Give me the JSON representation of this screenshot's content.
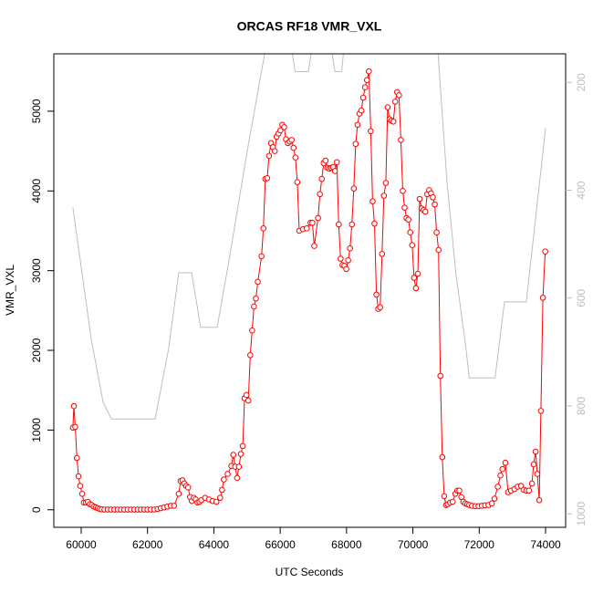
{
  "chart_data": {
    "type": "line",
    "title": "ORCAS RF18 VMR_VXL",
    "x_label": "UTC Seconds",
    "y_label": "VMR_VXL",
    "xlim": [
      59175,
      74605
    ],
    "xticks": [
      60000,
      62000,
      64000,
      66000,
      68000,
      70000,
      72000,
      74000
    ],
    "ylim": [
      -220,
      5720
    ],
    "yticks": [
      0,
      1000,
      2000,
      3000,
      4000,
      5000
    ],
    "y2lim": [
      1025,
      147
    ],
    "y2ticks": [
      200,
      400,
      600,
      800,
      1000
    ],
    "series": [
      {
        "color": "#ff0000",
        "markers": true,
        "x": [
          59750,
          59780,
          59820,
          59870,
          59920,
          59970,
          60030,
          60080,
          60140,
          60200,
          60260,
          60320,
          60380,
          60440,
          60500,
          60560,
          60620,
          60700,
          60800,
          60900,
          61000,
          61100,
          61200,
          61300,
          61400,
          61500,
          61600,
          61700,
          61800,
          61900,
          62000,
          62100,
          62200,
          62300,
          62400,
          62500,
          62600,
          62700,
          62800,
          62940,
          62997,
          63054,
          63110,
          63167,
          63224,
          63281,
          63337,
          63394,
          63451,
          63508,
          63565,
          63621,
          63735,
          63848,
          63962,
          64075,
          64189,
          64246,
          64302,
          64416,
          64529,
          64586,
          64643,
          64700,
          64756,
          64813,
          64870,
          64927,
          64983,
          65040,
          65097,
          65154,
          65210,
          65267,
          65324,
          65437,
          65494,
          65551,
          65608,
          65664,
          65721,
          65778,
          65835,
          65891,
          65948,
          66005,
          66062,
          66118,
          66175,
          66232,
          66289,
          66345,
          66402,
          66459,
          66516,
          66573,
          66686,
          66800,
          66913,
          66970,
          67027,
          67140,
          67197,
          67254,
          67311,
          67367,
          67424,
          67481,
          67538,
          67594,
          67651,
          67708,
          67765,
          67821,
          67878,
          67935,
          67992,
          68048,
          68105,
          68162,
          68219,
          68275,
          68332,
          68389,
          68446,
          68502,
          68559,
          68616,
          68673,
          68729,
          68786,
          68843,
          68900,
          68957,
          69013,
          69070,
          69127,
          69184,
          69240,
          69297,
          69354,
          69411,
          69467,
          69524,
          69581,
          69638,
          69695,
          69751,
          69808,
          69865,
          69921,
          69978,
          70035,
          70092,
          70148,
          70205,
          70262,
          70319,
          70375,
          70432,
          70489,
          70546,
          70602,
          70659,
          70716,
          70773,
          70829,
          70886,
          70943,
          71000,
          71050,
          71120,
          71200,
          71280,
          71340,
          71400,
          71460,
          71520,
          71580,
          71640,
          71700,
          71780,
          71880,
          71980,
          72080,
          72180,
          72280,
          72380,
          72460,
          72560,
          72640,
          72700,
          72790,
          72870,
          72960,
          73060,
          73160,
          73260,
          73340,
          73420,
          73500,
          73590,
          73640,
          73700,
          73750,
          73810,
          73860,
          73920,
          73990
        ],
        "values": [
          1030,
          1300,
          1040,
          650,
          420,
          300,
          200,
          90,
          90,
          100,
          70,
          60,
          40,
          30,
          20,
          10,
          5,
          3,
          3,
          3,
          3,
          3,
          3,
          3,
          3,
          3,
          3,
          3,
          3,
          3,
          3,
          3,
          3,
          10,
          20,
          30,
          40,
          50,
          50,
          200,
          360,
          370,
          330,
          300,
          280,
          160,
          110,
          150,
          130,
          90,
          100,
          120,
          150,
          130,
          110,
          100,
          150,
          250,
          380,
          450,
          550,
          690,
          540,
          400,
          540,
          700,
          800,
          1400,
          1440,
          1370,
          1940,
          2250,
          2550,
          2650,
          2860,
          3180,
          3530,
          4150,
          4160,
          4440,
          4600,
          4550,
          4500,
          4680,
          4720,
          4760,
          4830,
          4800,
          4650,
          4600,
          4620,
          4640,
          4540,
          4420,
          4110,
          3500,
          3520,
          3530,
          3600,
          3600,
          3310,
          3660,
          3960,
          4150,
          4350,
          4380,
          4290,
          4280,
          4290,
          4300,
          4250,
          4360,
          3580,
          3150,
          3070,
          3060,
          3020,
          3130,
          3280,
          3580,
          4030,
          4590,
          4830,
          4970,
          5010,
          5170,
          5300,
          5390,
          5500,
          4750,
          3870,
          3590,
          2700,
          2520,
          2540,
          3210,
          3940,
          4100,
          5050,
          4900,
          4880,
          4870,
          5120,
          5240,
          5200,
          4640,
          4000,
          3790,
          3660,
          3640,
          3480,
          3320,
          2910,
          2780,
          2960,
          3900,
          3780,
          3760,
          3740,
          3960,
          4010,
          3970,
          3920,
          3830,
          3480,
          3260,
          1680,
          660,
          170,
          60,
          70,
          90,
          100,
          200,
          240,
          240,
          160,
          100,
          80,
          70,
          60,
          50,
          45,
          45,
          50,
          55,
          60,
          80,
          140,
          290,
          430,
          510,
          590,
          220,
          240,
          260,
          290,
          300,
          250,
          240,
          240,
          330,
          570,
          730,
          450,
          120,
          1240,
          2660,
          3240
        ]
      },
      {
        "color": "#bebebe",
        "axis": "y2",
        "markers": false,
        "x": [
          59750,
          60030,
          60300,
          60660,
          60910,
          62230,
          62640,
          62940,
          63330,
          63600,
          64100,
          64430,
          64980,
          65530,
          65800,
          66300,
          66450,
          66850,
          67000,
          67500,
          67650,
          67850,
          67950,
          70700,
          70760,
          71030,
          71300,
          71580,
          71700,
          72480,
          72760,
          73420,
          74000
        ],
        "values": [
          432,
          556,
          675,
          793,
          824,
          824,
          692,
          553,
          553,
          654,
          654,
          539,
          336,
          147,
          110,
          120,
          180,
          180,
          120,
          120,
          180,
          180,
          120,
          120,
          147,
          386,
          556,
          683,
          748,
          748,
          607,
          607,
          285
        ]
      }
    ]
  }
}
